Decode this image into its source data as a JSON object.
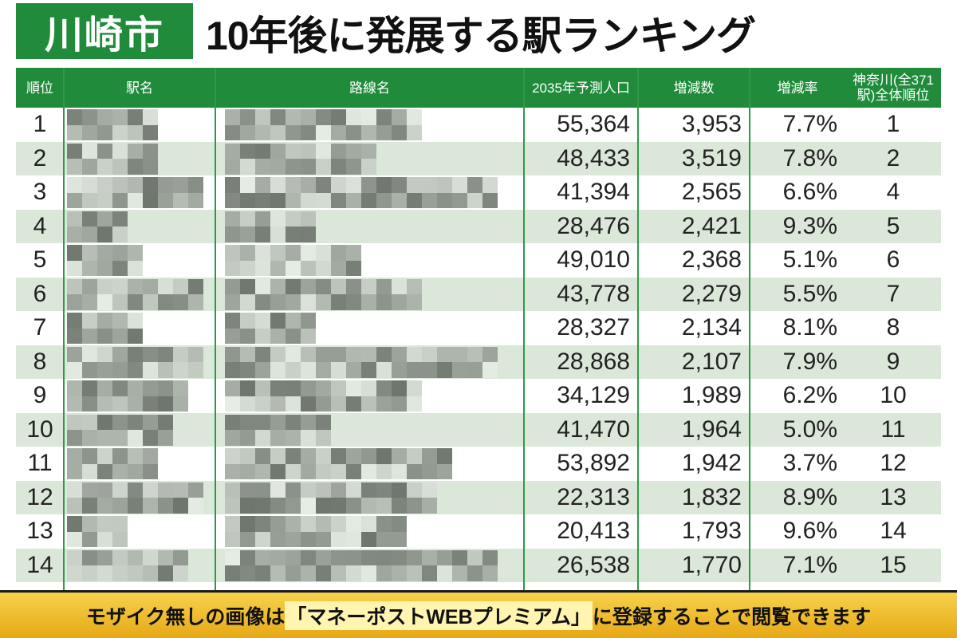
{
  "header": {
    "badge": "川崎市",
    "title": "10年後に発展する駅ランキング"
  },
  "table": {
    "columns": [
      "順位",
      "駅名",
      "路線名",
      "2035年予測人口",
      "増減数",
      "増減率",
      [
        "神奈川(全371",
        "駅)全体順位"
      ]
    ],
    "rows": [
      [
        "1",
        "55,364",
        "3,953",
        "7.7%",
        "1"
      ],
      [
        "2",
        "48,433",
        "3,519",
        "7.8%",
        "2"
      ],
      [
        "3",
        "41,394",
        "2,565",
        "6.6%",
        "4"
      ],
      [
        "4",
        "28,476",
        "2,421",
        "9.3%",
        "5"
      ],
      [
        "5",
        "49,010",
        "2,368",
        "5.1%",
        "6"
      ],
      [
        "6",
        "43,778",
        "2,279",
        "5.5%",
        "7"
      ],
      [
        "7",
        "28,327",
        "2,134",
        "8.1%",
        "8"
      ],
      [
        "8",
        "28,868",
        "2,107",
        "7.9%",
        "9"
      ],
      [
        "9",
        "34,129",
        "1,989",
        "6.2%",
        "10"
      ],
      [
        "10",
        "41,470",
        "1,964",
        "5.0%",
        "11"
      ],
      [
        "11",
        "53,892",
        "1,942",
        "3.7%",
        "12"
      ],
      [
        "12",
        "22,313",
        "1,832",
        "8.9%",
        "13"
      ],
      [
        "13",
        "20,413",
        "1,793",
        "9.6%",
        "14"
      ],
      [
        "14",
        "26,538",
        "1,770",
        "7.1%",
        "15"
      ]
    ]
  },
  "footer": {
    "before": "モザイク無しの画像は",
    "highlight": "「マネーポストWEBプレミアム」",
    "after": "に登録することで閲覧できます"
  }
}
